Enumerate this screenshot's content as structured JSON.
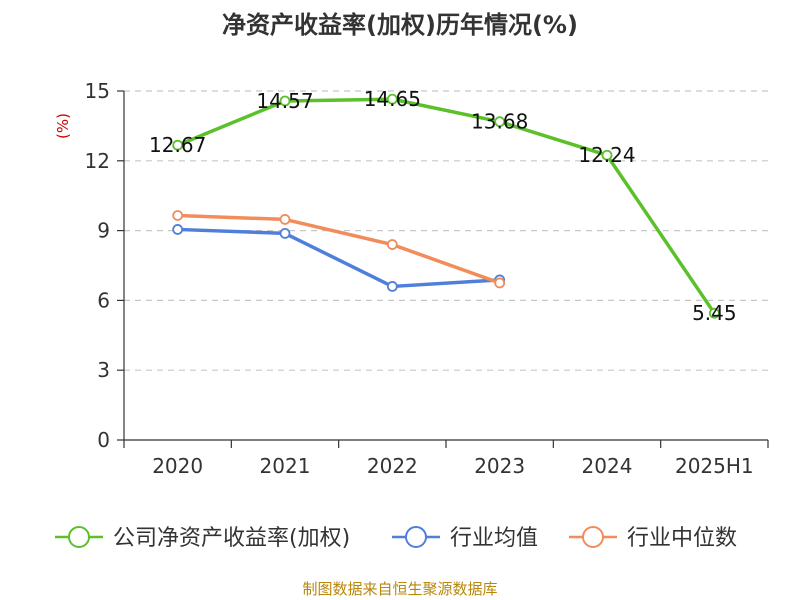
{
  "chart_data": {
    "type": "line",
    "title": "净资产收益率(加权)历年情况(%)",
    "ylabel": "(%)",
    "xlabel": "",
    "categories": [
      "2020",
      "2021",
      "2022",
      "2023",
      "2024",
      "2025H1"
    ],
    "ylim": [
      0,
      15
    ],
    "yticks": [
      0,
      3,
      6,
      9,
      12,
      15
    ],
    "grid": true,
    "legend_position": "bottom",
    "series": [
      {
        "name": "公司净资产收益率(加权)",
        "color": "#5cc02a",
        "values": [
          12.67,
          14.57,
          14.65,
          13.68,
          12.24,
          5.45
        ],
        "labels": [
          "12.67",
          "14.57",
          "14.65",
          "13.68",
          "12.24",
          "5.45"
        ]
      },
      {
        "name": "行业均值",
        "color": "#4f7fdb",
        "values": [
          9.05,
          8.88,
          6.6,
          6.88,
          null,
          null
        ]
      },
      {
        "name": "行业中位数",
        "color": "#f28c5a",
        "values": [
          9.65,
          9.48,
          8.4,
          6.75,
          null,
          null
        ]
      }
    ]
  },
  "footer": {
    "source": "制图数据来自恒生聚源数据库"
  }
}
